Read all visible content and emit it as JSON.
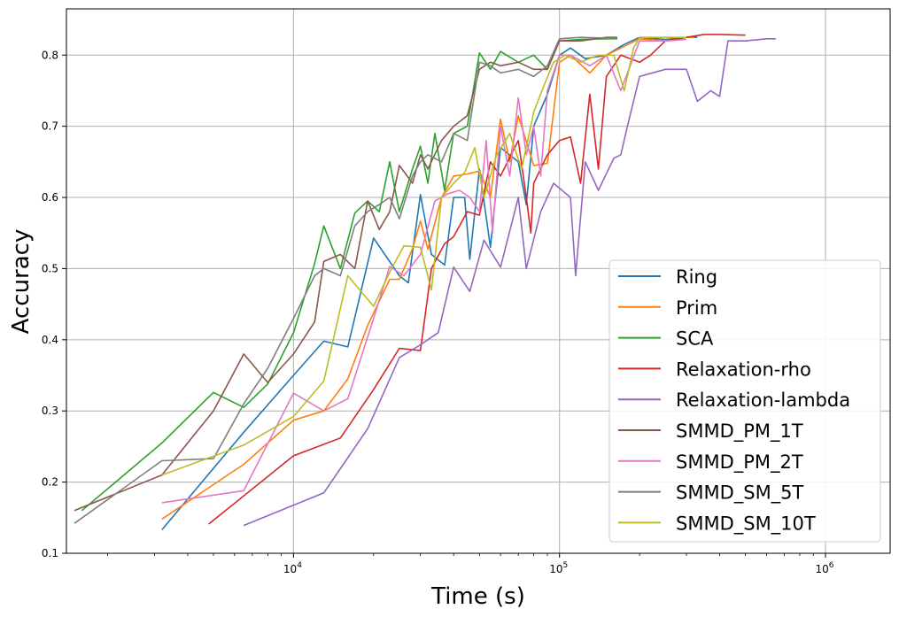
{
  "chart_data": {
    "type": "line",
    "title": "",
    "xlabel": "Time (s)",
    "ylabel": "Accuracy",
    "xscale": "log",
    "xlim": [
      1400,
      1750000
    ],
    "ylim": [
      0.1,
      0.865
    ],
    "grid": true,
    "legend_position": "bottom-right",
    "x_ticks": [
      {
        "value": 10000,
        "base": "10",
        "exp": "4"
      },
      {
        "value": 100000,
        "base": "10",
        "exp": "5"
      },
      {
        "value": 1000000,
        "base": "10",
        "exp": "6"
      }
    ],
    "y_ticks": [
      {
        "value": 0.1,
        "label": "0.1"
      },
      {
        "value": 0.2,
        "label": "0.2"
      },
      {
        "value": 0.3,
        "label": "0.3"
      },
      {
        "value": 0.4,
        "label": "0.4"
      },
      {
        "value": 0.5,
        "label": "0.5"
      },
      {
        "value": 0.6,
        "label": "0.6"
      },
      {
        "value": 0.7,
        "label": "0.7"
      },
      {
        "value": 0.8,
        "label": "0.8"
      }
    ],
    "series": [
      {
        "name": "Ring",
        "color": "#1f77b4",
        "points": [
          [
            3200,
            0.133
          ],
          [
            6500,
            0.27
          ],
          [
            10000,
            0.35
          ],
          [
            13000,
            0.398
          ],
          [
            16000,
            0.39
          ],
          [
            20000,
            0.543
          ],
          [
            25000,
            0.49
          ],
          [
            27000,
            0.48
          ],
          [
            30000,
            0.604
          ],
          [
            33000,
            0.52
          ],
          [
            37000,
            0.505
          ],
          [
            40000,
            0.6
          ],
          [
            44000,
            0.6
          ],
          [
            46000,
            0.513
          ],
          [
            50000,
            0.64
          ],
          [
            55000,
            0.53
          ],
          [
            60000,
            0.67
          ],
          [
            70000,
            0.65
          ],
          [
            75000,
            0.59
          ],
          [
            80000,
            0.7
          ],
          [
            90000,
            0.745
          ],
          [
            100000,
            0.8
          ],
          [
            110000,
            0.81
          ],
          [
            125000,
            0.795
          ],
          [
            150000,
            0.8
          ],
          [
            175000,
            0.815
          ],
          [
            200000,
            0.825
          ],
          [
            250000,
            0.822
          ],
          [
            300000,
            0.825
          ],
          [
            330000,
            0.825
          ]
        ]
      },
      {
        "name": "Prim",
        "color": "#ff7f0e",
        "points": [
          [
            3200,
            0.148
          ],
          [
            6500,
            0.225
          ],
          [
            10000,
            0.287
          ],
          [
            13000,
            0.3
          ],
          [
            16000,
            0.345
          ],
          [
            19000,
            0.42
          ],
          [
            23000,
            0.485
          ],
          [
            25000,
            0.485
          ],
          [
            28000,
            0.528
          ],
          [
            30000,
            0.567
          ],
          [
            32000,
            0.527
          ],
          [
            36000,
            0.6
          ],
          [
            40000,
            0.63
          ],
          [
            45000,
            0.633
          ],
          [
            50000,
            0.637
          ],
          [
            55000,
            0.6
          ],
          [
            60000,
            0.71
          ],
          [
            65000,
            0.65
          ],
          [
            70000,
            0.715
          ],
          [
            80000,
            0.645
          ],
          [
            90000,
            0.648
          ],
          [
            100000,
            0.79
          ],
          [
            110000,
            0.8
          ],
          [
            130000,
            0.775
          ],
          [
            150000,
            0.8
          ],
          [
            200000,
            0.823
          ],
          [
            250000,
            0.82
          ],
          [
            300000,
            0.825
          ],
          [
            320000,
            0.825
          ]
        ]
      },
      {
        "name": "SCA",
        "color": "#2ca02c",
        "points": [
          [
            1600,
            0.16
          ],
          [
            3200,
            0.255
          ],
          [
            5000,
            0.326
          ],
          [
            6500,
            0.305
          ],
          [
            8000,
            0.338
          ],
          [
            10000,
            0.41
          ],
          [
            12000,
            0.507
          ],
          [
            13000,
            0.56
          ],
          [
            15000,
            0.5
          ],
          [
            17000,
            0.578
          ],
          [
            19000,
            0.595
          ],
          [
            21000,
            0.58
          ],
          [
            23000,
            0.65
          ],
          [
            25000,
            0.58
          ],
          [
            28000,
            0.64
          ],
          [
            30000,
            0.672
          ],
          [
            32000,
            0.62
          ],
          [
            34000,
            0.69
          ],
          [
            37000,
            0.61
          ],
          [
            40000,
            0.69
          ],
          [
            45000,
            0.7
          ],
          [
            50000,
            0.803
          ],
          [
            55000,
            0.78
          ],
          [
            60000,
            0.805
          ],
          [
            70000,
            0.79
          ],
          [
            80000,
            0.8
          ],
          [
            90000,
            0.78
          ],
          [
            100000,
            0.82
          ],
          [
            120000,
            0.822
          ],
          [
            150000,
            0.823
          ],
          [
            165000,
            0.823
          ]
        ]
      },
      {
        "name": "Relaxation-rho",
        "color": "#d62728",
        "points": [
          [
            4800,
            0.141
          ],
          [
            10000,
            0.237
          ],
          [
            15000,
            0.262
          ],
          [
            20000,
            0.33
          ],
          [
            25000,
            0.388
          ],
          [
            30000,
            0.385
          ],
          [
            33000,
            0.5
          ],
          [
            37000,
            0.535
          ],
          [
            40000,
            0.545
          ],
          [
            45000,
            0.58
          ],
          [
            50000,
            0.575
          ],
          [
            55000,
            0.65
          ],
          [
            60000,
            0.63
          ],
          [
            70000,
            0.68
          ],
          [
            75000,
            0.6
          ],
          [
            78000,
            0.55
          ],
          [
            80000,
            0.62
          ],
          [
            90000,
            0.66
          ],
          [
            100000,
            0.68
          ],
          [
            110000,
            0.685
          ],
          [
            120000,
            0.62
          ],
          [
            130000,
            0.745
          ],
          [
            140000,
            0.64
          ],
          [
            150000,
            0.77
          ],
          [
            170000,
            0.8
          ],
          [
            200000,
            0.79
          ],
          [
            220000,
            0.8
          ],
          [
            250000,
            0.82
          ],
          [
            300000,
            0.825
          ],
          [
            350000,
            0.829
          ],
          [
            400000,
            0.829
          ],
          [
            500000,
            0.828
          ]
        ]
      },
      {
        "name": "Relaxation-lambda",
        "color": "#9467bd",
        "points": [
          [
            6500,
            0.139
          ],
          [
            13000,
            0.185
          ],
          [
            19000,
            0.275
          ],
          [
            25000,
            0.375
          ],
          [
            30000,
            0.393
          ],
          [
            35000,
            0.41
          ],
          [
            40000,
            0.502
          ],
          [
            46000,
            0.468
          ],
          [
            52000,
            0.54
          ],
          [
            60000,
            0.502
          ],
          [
            70000,
            0.6
          ],
          [
            75000,
            0.5
          ],
          [
            85000,
            0.58
          ],
          [
            95000,
            0.62
          ],
          [
            110000,
            0.6
          ],
          [
            115000,
            0.49
          ],
          [
            125000,
            0.65
          ],
          [
            140000,
            0.61
          ],
          [
            160000,
            0.655
          ],
          [
            170000,
            0.66
          ],
          [
            180000,
            0.7
          ],
          [
            200000,
            0.77
          ],
          [
            250000,
            0.78
          ],
          [
            300000,
            0.78
          ],
          [
            330000,
            0.735
          ],
          [
            370000,
            0.75
          ],
          [
            400000,
            0.742
          ],
          [
            430000,
            0.82
          ],
          [
            500000,
            0.82
          ],
          [
            600000,
            0.823
          ],
          [
            650000,
            0.823
          ]
        ]
      },
      {
        "name": "SMMD_PM_1T",
        "color": "#8c564b",
        "points": [
          [
            1500,
            0.16
          ],
          [
            3200,
            0.21
          ],
          [
            5000,
            0.3
          ],
          [
            6500,
            0.38
          ],
          [
            8000,
            0.34
          ],
          [
            10000,
            0.38
          ],
          [
            12000,
            0.425
          ],
          [
            13000,
            0.51
          ],
          [
            15000,
            0.52
          ],
          [
            17000,
            0.5
          ],
          [
            19000,
            0.595
          ],
          [
            21000,
            0.555
          ],
          [
            23000,
            0.58
          ],
          [
            25000,
            0.645
          ],
          [
            28000,
            0.62
          ],
          [
            30000,
            0.66
          ],
          [
            32000,
            0.64
          ],
          [
            36000,
            0.68
          ],
          [
            40000,
            0.7
          ],
          [
            45000,
            0.715
          ],
          [
            50000,
            0.78
          ],
          [
            55000,
            0.79
          ],
          [
            60000,
            0.785
          ],
          [
            70000,
            0.79
          ],
          [
            80000,
            0.78
          ],
          [
            90000,
            0.78
          ],
          [
            100000,
            0.82
          ],
          [
            120000,
            0.82
          ],
          [
            150000,
            0.825
          ],
          [
            165000,
            0.825
          ]
        ]
      },
      {
        "name": "SMMD_PM_2T",
        "color": "#e377c2",
        "points": [
          [
            3200,
            0.171
          ],
          [
            6500,
            0.188
          ],
          [
            10000,
            0.325
          ],
          [
            13000,
            0.3
          ],
          [
            16000,
            0.317
          ],
          [
            20000,
            0.43
          ],
          [
            23000,
            0.503
          ],
          [
            26000,
            0.49
          ],
          [
            30000,
            0.52
          ],
          [
            34000,
            0.595
          ],
          [
            38000,
            0.605
          ],
          [
            42000,
            0.61
          ],
          [
            46000,
            0.6
          ],
          [
            50000,
            0.58
          ],
          [
            53000,
            0.68
          ],
          [
            56000,
            0.55
          ],
          [
            60000,
            0.7
          ],
          [
            65000,
            0.63
          ],
          [
            70000,
            0.74
          ],
          [
            75000,
            0.66
          ],
          [
            80000,
            0.7
          ],
          [
            85000,
            0.63
          ],
          [
            90000,
            0.75
          ],
          [
            100000,
            0.8
          ],
          [
            110000,
            0.8
          ],
          [
            130000,
            0.785
          ],
          [
            150000,
            0.8
          ],
          [
            170000,
            0.75
          ],
          [
            200000,
            0.82
          ],
          [
            250000,
            0.82
          ],
          [
            300000,
            0.822
          ]
        ]
      },
      {
        "name": "SMMD_SM_5T",
        "color": "#7f7f7f",
        "points": [
          [
            1500,
            0.142
          ],
          [
            3200,
            0.23
          ],
          [
            5000,
            0.233
          ],
          [
            6500,
            0.31
          ],
          [
            8000,
            0.36
          ],
          [
            10000,
            0.43
          ],
          [
            12000,
            0.49
          ],
          [
            13000,
            0.5
          ],
          [
            15000,
            0.49
          ],
          [
            17000,
            0.56
          ],
          [
            19000,
            0.58
          ],
          [
            21000,
            0.59
          ],
          [
            23000,
            0.6
          ],
          [
            25000,
            0.57
          ],
          [
            28000,
            0.63
          ],
          [
            30000,
            0.65
          ],
          [
            32000,
            0.66
          ],
          [
            36000,
            0.65
          ],
          [
            40000,
            0.69
          ],
          [
            45000,
            0.68
          ],
          [
            50000,
            0.79
          ],
          [
            55000,
            0.785
          ],
          [
            60000,
            0.775
          ],
          [
            70000,
            0.78
          ],
          [
            80000,
            0.77
          ],
          [
            90000,
            0.785
          ],
          [
            100000,
            0.823
          ],
          [
            120000,
            0.825
          ],
          [
            150000,
            0.824
          ],
          [
            165000,
            0.824
          ]
        ]
      },
      {
        "name": "SMMD_SM_10T",
        "color": "#bcbd22",
        "points": [
          [
            3200,
            0.21
          ],
          [
            6500,
            0.252
          ],
          [
            10000,
            0.292
          ],
          [
            13000,
            0.342
          ],
          [
            16000,
            0.49
          ],
          [
            20000,
            0.447
          ],
          [
            23000,
            0.495
          ],
          [
            26000,
            0.532
          ],
          [
            30000,
            0.53
          ],
          [
            33000,
            0.47
          ],
          [
            36000,
            0.6
          ],
          [
            40000,
            0.62
          ],
          [
            44000,
            0.635
          ],
          [
            48000,
            0.67
          ],
          [
            52000,
            0.6
          ],
          [
            58000,
            0.66
          ],
          [
            65000,
            0.69
          ],
          [
            72000,
            0.64
          ],
          [
            80000,
            0.72
          ],
          [
            88000,
            0.76
          ],
          [
            95000,
            0.79
          ],
          [
            105000,
            0.8
          ],
          [
            120000,
            0.79
          ],
          [
            140000,
            0.8
          ],
          [
            160000,
            0.8
          ],
          [
            175000,
            0.75
          ],
          [
            190000,
            0.81
          ],
          [
            200000,
            0.825
          ],
          [
            250000,
            0.825
          ],
          [
            300000,
            0.825
          ]
        ]
      }
    ]
  }
}
